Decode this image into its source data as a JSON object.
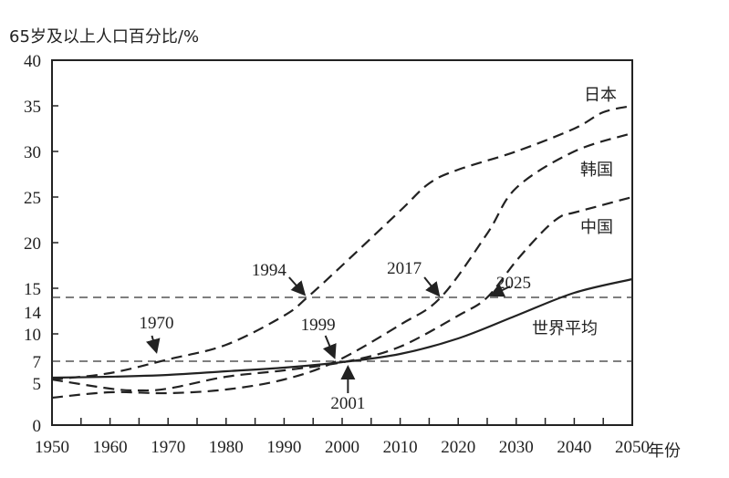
{
  "chart_data": {
    "type": "line",
    "title": "",
    "ylabel": "65岁及以上人口百分比/%",
    "xlabel": "年份",
    "xlim": [
      1950,
      2050
    ],
    "ylim": [
      0,
      40
    ],
    "x_ticks": [
      "1950",
      "1960",
      "1970",
      "1980",
      "1990",
      "2000",
      "2010",
      "2020",
      "2030",
      "2040",
      "2050"
    ],
    "y_ticks": [
      "0",
      "5",
      "7",
      "10",
      "14",
      "15",
      "20",
      "25",
      "30",
      "35",
      "40"
    ],
    "reference_lines": [
      7,
      14
    ],
    "series": [
      {
        "name": "日本",
        "style": "dashed",
        "x": [
          1950,
          1960,
          1970,
          1980,
          1990,
          1994,
          2000,
          2010,
          2015,
          2020,
          2030,
          2040,
          2045,
          2050
        ],
        "y": [
          5,
          5.7,
          7.2,
          8.8,
          12,
          14,
          17.5,
          23.5,
          26.5,
          28,
          30,
          32.5,
          34.3,
          35
        ]
      },
      {
        "name": "韩国",
        "style": "dashed",
        "x": [
          1950,
          1960,
          1970,
          1980,
          1990,
          1999,
          2010,
          2017,
          2025,
          2030,
          2040,
          2050
        ],
        "y": [
          3,
          3.6,
          3.5,
          3.9,
          5,
          7,
          11,
          14,
          21,
          26,
          30,
          32
        ]
      },
      {
        "name": "中国",
        "style": "dashed",
        "x": [
          1950,
          1960,
          1965,
          1970,
          1980,
          1990,
          2001,
          2010,
          2020,
          2025,
          2030,
          2035,
          2038,
          2040,
          2050
        ],
        "y": [
          5,
          4,
          3.8,
          4,
          5.3,
          6,
          7,
          8.6,
          12,
          14,
          18,
          21.5,
          23,
          23.3,
          25
        ]
      },
      {
        "name": "世界平均",
        "style": "solid",
        "x": [
          1950,
          1960,
          1970,
          1980,
          1990,
          2000,
          2010,
          2020,
          2030,
          2040,
          2050
        ],
        "y": [
          5.2,
          5.3,
          5.5,
          5.9,
          6.3,
          6.9,
          7.8,
          9.5,
          12,
          14.5,
          16
        ]
      }
    ],
    "annotations": [
      {
        "text": "1970",
        "x": 1968,
        "y": 7
      },
      {
        "text": "1994",
        "x": 1994,
        "y": 14
      },
      {
        "text": "1999",
        "x": 1999,
        "y": 7
      },
      {
        "text": "2001",
        "x": 2001,
        "y": 7
      },
      {
        "text": "2017",
        "x": 2017,
        "y": 14
      },
      {
        "text": "2025",
        "x": 2025,
        "y": 14
      }
    ]
  }
}
